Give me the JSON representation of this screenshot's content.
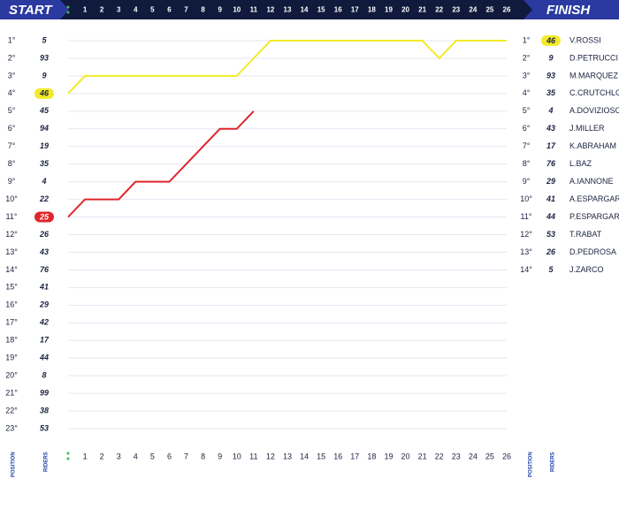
{
  "header": {
    "start": "START",
    "finish": "FINISH"
  },
  "chart_data": {
    "type": "line",
    "x": [
      0,
      1,
      2,
      3,
      4,
      5,
      6,
      7,
      8,
      9,
      10,
      11,
      12,
      13,
      14,
      15,
      16,
      17,
      18,
      19,
      20,
      21,
      22,
      23,
      24,
      25,
      26
    ],
    "xlim": [
      0,
      26
    ],
    "xticks": [
      1,
      2,
      3,
      4,
      5,
      6,
      7,
      8,
      9,
      10,
      11,
      12,
      13,
      14,
      15,
      16,
      17,
      18,
      19,
      20,
      21,
      22,
      23,
      24,
      25,
      26
    ],
    "ylim": [
      1,
      23
    ],
    "yticks": [
      {
        "value": 1,
        "label": "1°"
      },
      {
        "value": 2,
        "label": "2°"
      },
      {
        "value": 3,
        "label": "3°"
      },
      {
        "value": 4,
        "label": "4°"
      },
      {
        "value": 5,
        "label": "5°"
      },
      {
        "value": 6,
        "label": "6°"
      },
      {
        "value": 7,
        "label": "7°"
      },
      {
        "value": 8,
        "label": "8°"
      },
      {
        "value": 9,
        "label": "9°"
      },
      {
        "value": 10,
        "label": "10°"
      },
      {
        "value": 11,
        "label": "11°"
      },
      {
        "value": 12,
        "label": "12°"
      },
      {
        "value": 13,
        "label": "13°"
      },
      {
        "value": 14,
        "label": "14°"
      },
      {
        "value": 15,
        "label": "15°"
      },
      {
        "value": 16,
        "label": "16°"
      },
      {
        "value": 17,
        "label": "17°"
      },
      {
        "value": 18,
        "label": "18°"
      },
      {
        "value": 19,
        "label": "19°"
      },
      {
        "value": 20,
        "label": "20°"
      },
      {
        "value": 21,
        "label": "21°"
      },
      {
        "value": 22,
        "label": "22°"
      },
      {
        "value": 23,
        "label": "23°"
      }
    ],
    "grid": true,
    "position_label": "POSITION",
    "riders_label": "RIDERS",
    "start_grid": [
      5,
      93,
      9,
      46,
      45,
      94,
      19,
      35,
      4,
      22,
      25,
      26,
      43,
      76,
      41,
      29,
      42,
      17,
      44,
      8,
      99,
      38,
      53
    ],
    "series": [
      {
        "rider": 46,
        "color": "#f2ea2b",
        "values": [
          4,
          3,
          3,
          3,
          3,
          3,
          3,
          3,
          3,
          3,
          3,
          2,
          1,
          1,
          1,
          1,
          1,
          1,
          1,
          1,
          1,
          1,
          2,
          1,
          1,
          1,
          1
        ]
      },
      {
        "rider": 25,
        "color": "#e0262b",
        "values": [
          11,
          10,
          10,
          10,
          9,
          9,
          9,
          8,
          7,
          6,
          6,
          5,
          null,
          null,
          null,
          null,
          null,
          null,
          null,
          null,
          null,
          null,
          null,
          null,
          null,
          null,
          null
        ]
      }
    ],
    "finish": [
      {
        "rider": 46,
        "name": "V.ROSSI"
      },
      {
        "rider": 9,
        "name": "D.PETRUCCI"
      },
      {
        "rider": 93,
        "name": "M.MARQUEZ"
      },
      {
        "rider": 35,
        "name": "C.CRUTCHLOW"
      },
      {
        "rider": 4,
        "name": "A.DOVIZIOSO"
      },
      {
        "rider": 43,
        "name": "J.MILLER"
      },
      {
        "rider": 17,
        "name": "K.ABRAHAM"
      },
      {
        "rider": 76,
        "name": "L.BAZ"
      },
      {
        "rider": 29,
        "name": "A.IANNONE"
      },
      {
        "rider": 41,
        "name": "A.ESPARGARÓ"
      },
      {
        "rider": 44,
        "name": "P.ESPARGARÓ"
      },
      {
        "rider": 53,
        "name": "T.RABAT"
      },
      {
        "rider": 26,
        "name": "D.PEDROSA"
      },
      {
        "rider": 5,
        "name": "J.ZARCO"
      }
    ]
  }
}
